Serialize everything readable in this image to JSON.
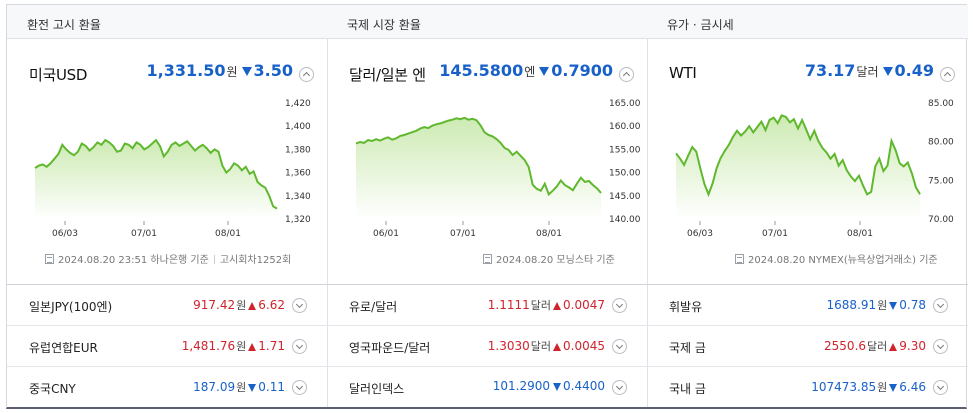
{
  "columns": [
    {
      "header": "환전 고시 환율",
      "title": "미국USD",
      "price": "1,331.50",
      "unit": "원",
      "change": "3.50",
      "direction": "down",
      "source_icon": "document-icon",
      "source_date": "2024.08.20 23:51 하나은행 기준",
      "source_extra": "고시회차1252회",
      "chart_data": {
        "type": "area",
        "x_ticks": [
          "06/03",
          "07/01",
          "08/01"
        ],
        "y_ticks": [
          "1,420",
          "1,400",
          "1,380",
          "1,360",
          "1,340",
          "1,320"
        ],
        "ylim": [
          1320,
          1420
        ],
        "values": [
          1364,
          1366,
          1367,
          1365,
          1368,
          1372,
          1376,
          1384,
          1380,
          1377,
          1375,
          1378,
          1385,
          1383,
          1379,
          1382,
          1386,
          1384,
          1388,
          1386,
          1383,
          1378,
          1379,
          1385,
          1384,
          1381,
          1386,
          1384,
          1380,
          1382,
          1385,
          1388,
          1383,
          1374,
          1378,
          1384,
          1386,
          1383,
          1385,
          1387,
          1383,
          1379,
          1382,
          1384,
          1381,
          1377,
          1380,
          1378,
          1366,
          1360,
          1363,
          1368,
          1366,
          1362,
          1365,
          1359,
          1361,
          1352,
          1349,
          1347,
          1340,
          1331,
          1329
        ]
      }
    },
    {
      "header": "국제 시장 환율",
      "title": "달러/일본 엔",
      "price": "145.5800",
      "unit": "엔",
      "change": "0.7900",
      "direction": "down",
      "source_icon": "document-icon",
      "source_date": "2024.08.20 모닝스타 기준",
      "source_extra": "",
      "chart_data": {
        "type": "area",
        "x_ticks": [
          "06/01",
          "07/01",
          "08/01"
        ],
        "y_ticks": [
          "165.00",
          "160.00",
          "155.00",
          "150.00",
          "145.00",
          "140.00"
        ],
        "ylim": [
          140,
          165
        ],
        "values": [
          156.3,
          156.6,
          156.4,
          157.0,
          156.8,
          157.2,
          156.9,
          157.3,
          157.6,
          157.1,
          157.4,
          157.9,
          158.1,
          158.4,
          158.7,
          159.0,
          159.5,
          159.8,
          159.6,
          160.1,
          160.4,
          160.6,
          160.9,
          161.2,
          161.4,
          161.7,
          161.5,
          161.8,
          161.4,
          161.6,
          161.3,
          160.2,
          158.7,
          158.1,
          157.8,
          157.2,
          156.4,
          155.3,
          154.9,
          153.8,
          154.5,
          153.6,
          152.7,
          151.2,
          147.4,
          146.5,
          146.1,
          147.6,
          145.3,
          146.1,
          147.0,
          148.3,
          147.3,
          146.8,
          146.2,
          147.6,
          148.9,
          148.0,
          148.2,
          147.3,
          146.6,
          145.6
        ]
      }
    },
    {
      "header": "유가 · 금시세",
      "title": "WTI",
      "price": "73.17",
      "unit": "달러",
      "change": "0.49",
      "direction": "down",
      "source_icon": "document-icon",
      "source_date": "2024.08.20 NYMEX(뉴욕상업거래소) 기준",
      "source_extra": "",
      "chart_data": {
        "type": "area",
        "x_ticks": [
          "06/03",
          "07/01",
          "08/01"
        ],
        "y_ticks": [
          "85.00",
          "80.00",
          "75.00",
          "70.00"
        ],
        "ylim": [
          70,
          85
        ],
        "values": [
          78.5,
          77.8,
          77.0,
          78.2,
          79.3,
          78.7,
          76.5,
          74.5,
          73.2,
          74.6,
          76.6,
          77.9,
          78.8,
          79.6,
          80.6,
          81.4,
          80.8,
          81.3,
          82.0,
          81.2,
          81.9,
          82.6,
          81.5,
          82.8,
          83.1,
          82.4,
          83.4,
          83.2,
          82.5,
          82.9,
          81.7,
          82.8,
          81.6,
          80.3,
          81.4,
          80.1,
          79.2,
          78.6,
          77.8,
          78.4,
          76.9,
          77.6,
          76.3,
          75.5,
          74.9,
          75.6,
          74.3,
          73.2,
          73.5,
          76.8,
          77.8,
          76.2,
          76.9,
          80.1,
          78.9,
          77.2,
          76.8,
          77.3,
          75.9,
          74.1,
          73.2
        ]
      }
    }
  ],
  "rows": [
    [
      {
        "name": "일본JPY(100엔)",
        "value": "917.42",
        "unit": "원",
        "change": "6.62",
        "direction": "up"
      },
      {
        "name": "유로/달러",
        "value": "1.1111",
        "unit": "달러",
        "change": "0.0047",
        "direction": "up"
      },
      {
        "name": "휘발유",
        "value": "1688.91",
        "unit": "원",
        "change": "0.78",
        "direction": "down"
      }
    ],
    [
      {
        "name": "유럽연합EUR",
        "value": "1,481.76",
        "unit": "원",
        "change": "1.71",
        "direction": "up"
      },
      {
        "name": "영국파운드/달러",
        "value": "1.3030",
        "unit": "달러",
        "change": "0.0045",
        "direction": "up"
      },
      {
        "name": "국제 금",
        "value": "2550.6",
        "unit": "달러",
        "change": "9.30",
        "direction": "up"
      }
    ],
    [
      {
        "name": "중국CNY",
        "value": "187.09",
        "unit": "원",
        "change": "0.11",
        "direction": "down"
      },
      {
        "name": "달러인덱스",
        "value": "101.2900",
        "unit": "",
        "change": "0.4400",
        "direction": "down"
      },
      {
        "name": "국내 금",
        "value": "107473.85",
        "unit": "원",
        "change": "6.46",
        "direction": "down"
      }
    ]
  ],
  "colors": {
    "up": "#d0232c",
    "down": "#1861c9",
    "line": "#5fb82e",
    "fill_top": "#cdeab3",
    "fill_bottom": "#ffffff"
  }
}
